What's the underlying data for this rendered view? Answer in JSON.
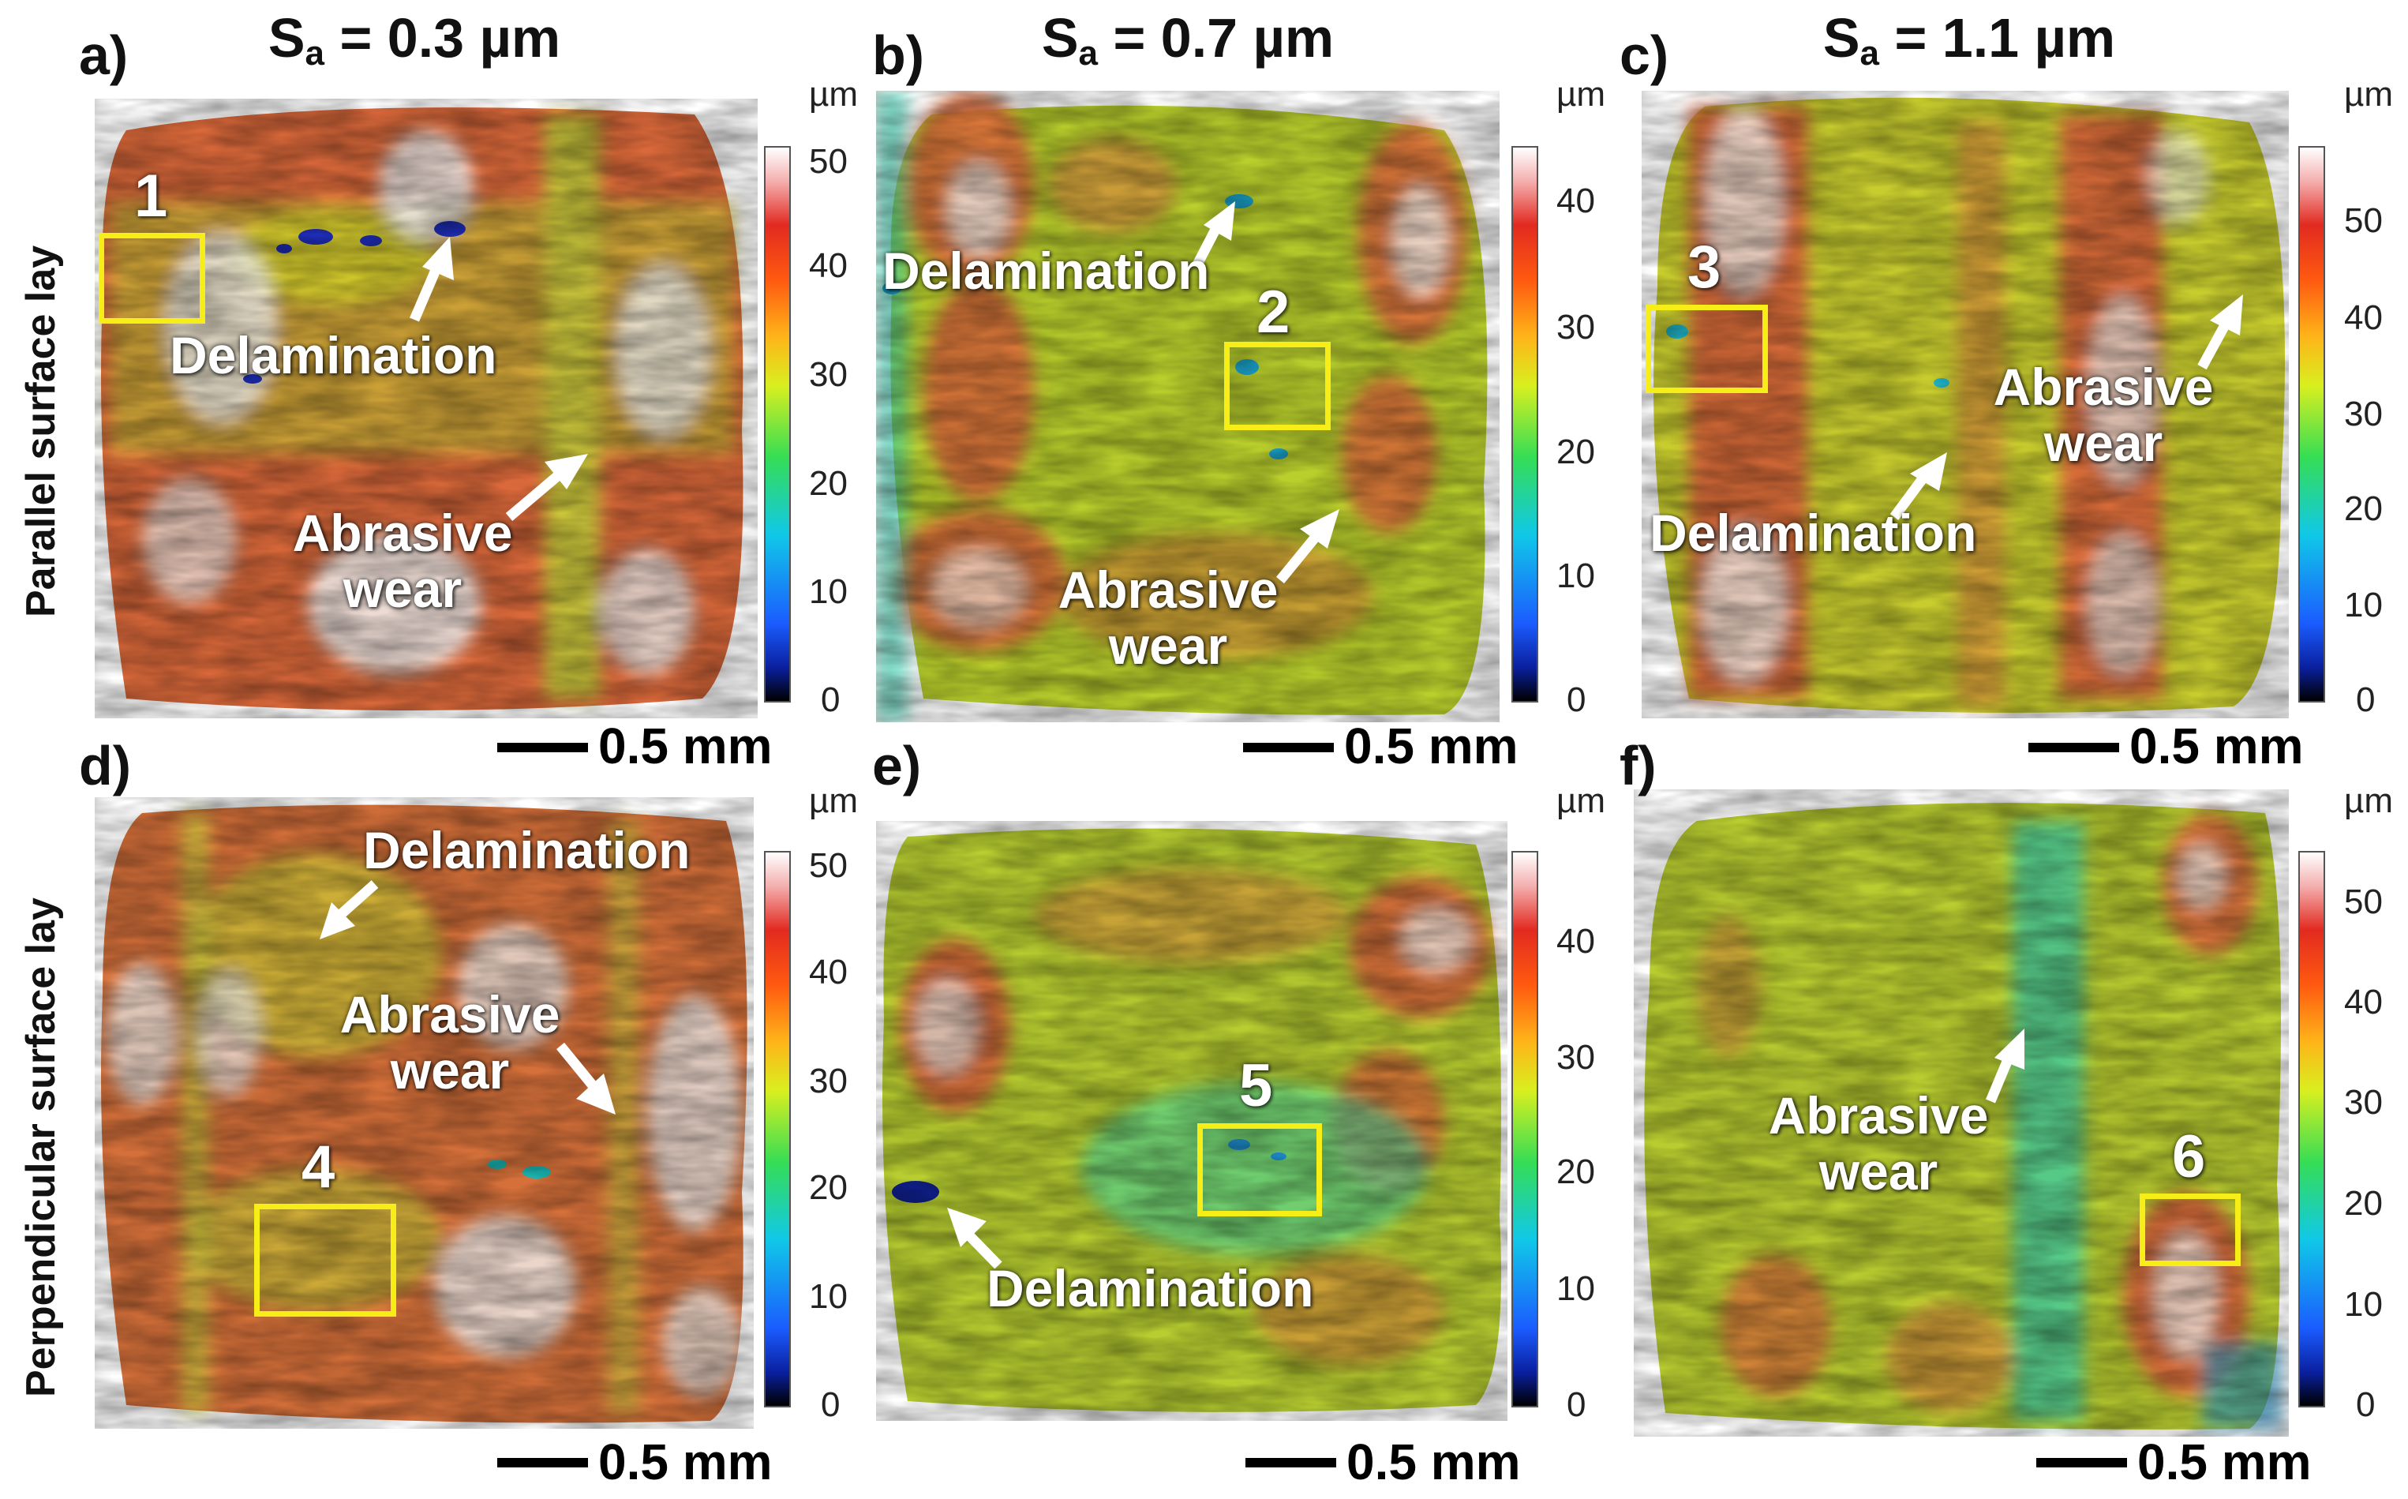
{
  "columns": {
    "a": {
      "prefix": "S",
      "sub": "a",
      "suffix": " = 0.3 µm"
    },
    "b": {
      "prefix": "S",
      "sub": "a",
      "suffix": " = 0.7 µm"
    },
    "c": {
      "prefix": "S",
      "sub": "a",
      "suffix": " = 1.1 µm"
    }
  },
  "rows": {
    "top": "Parallel surface lay",
    "bottom": "Perpendicular surface lay"
  },
  "panels": {
    "a": {
      "letter": "a)",
      "labels": {
        "delam": "Delamination",
        "abr": "Abrasive wear"
      },
      "number": "1",
      "scale": "0.5 mm",
      "unit": "µm",
      "ticks": [
        "50",
        "40",
        "30",
        "20",
        "10",
        "0"
      ]
    },
    "b": {
      "letter": "b)",
      "labels": {
        "delam": "Delamination",
        "abr": "Abrasive wear"
      },
      "number": "2",
      "scale": "0.5 mm",
      "unit": "µm",
      "ticks": [
        "40",
        "30",
        "20",
        "10",
        "0"
      ]
    },
    "c": {
      "letter": "c)",
      "labels": {
        "delam": "Delamination",
        "abr": "Abrasive wear"
      },
      "number": "3",
      "scale": "0.5 mm",
      "unit": "µm",
      "ticks": [
        "50",
        "40",
        "30",
        "20",
        "10",
        "0"
      ]
    },
    "d": {
      "letter": "d)",
      "labels": {
        "delam": "Delamination",
        "abr": "Abrasive wear"
      },
      "number": "4",
      "scale": "0.5 mm",
      "unit": "µm",
      "ticks": [
        "50",
        "40",
        "30",
        "20",
        "10",
        "0"
      ]
    },
    "e": {
      "letter": "e)",
      "labels": {
        "delam": "Delamination"
      },
      "number": "5",
      "scale": "0.5 mm",
      "unit": "µm",
      "ticks": [
        "40",
        "30",
        "20",
        "10",
        "0"
      ]
    },
    "f": {
      "letter": "f)",
      "labels": {
        "abr": "Abrasive wear"
      },
      "number": "6",
      "scale": "0.5 mm",
      "unit": "µm",
      "ticks": [
        "50",
        "40",
        "30",
        "20",
        "10",
        "0"
      ]
    }
  },
  "colors": {
    "marker_box": "#f7ee17",
    "annotation_text": "#ffffff",
    "colormap": [
      "#000000",
      "#0a1f9e",
      "#1b5cff",
      "#10c8e8",
      "#35dd55",
      "#d9ef1f",
      "#ffb319",
      "#ff5a10",
      "#e22a20",
      "#f4b0b0",
      "#ffffff"
    ]
  }
}
